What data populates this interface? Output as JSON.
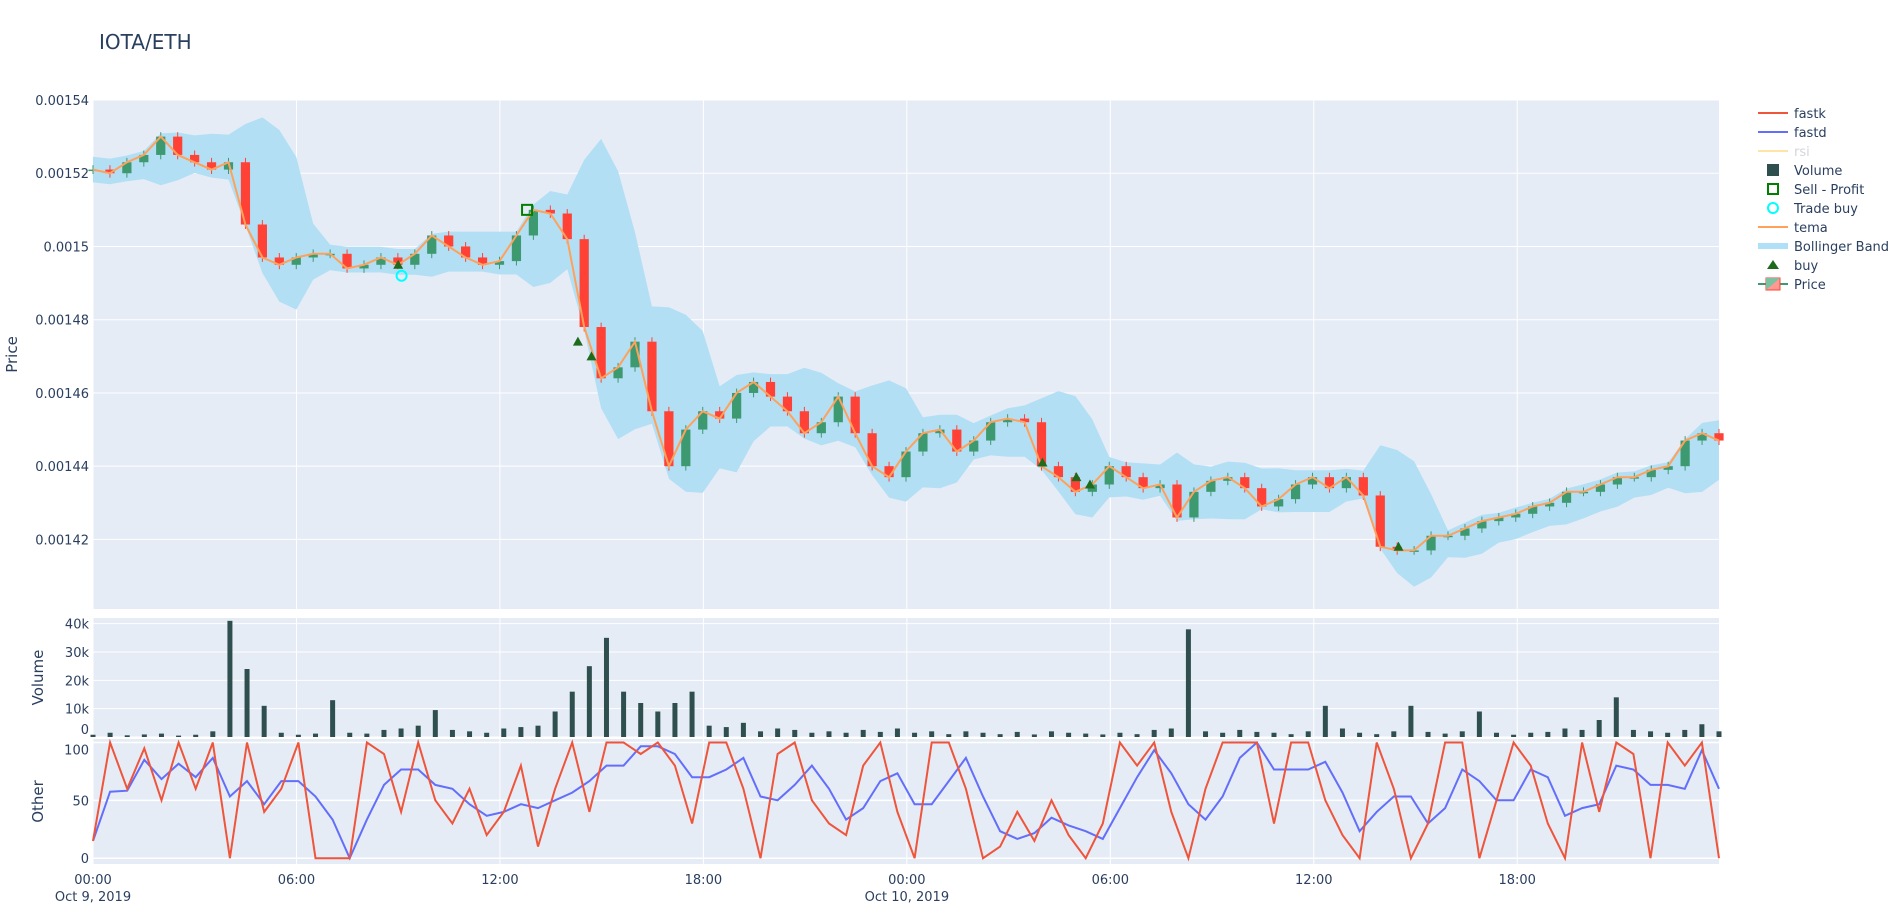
{
  "chart_data": {
    "type": "candlestick",
    "title": "IOTA/ETH",
    "x_ticks": [
      {
        "h": 0,
        "label": "00:00",
        "date": "Oct 9, 2019"
      },
      {
        "h": 6,
        "label": "06:00"
      },
      {
        "h": 12,
        "label": "12:00"
      },
      {
        "h": 18,
        "label": "18:00"
      },
      {
        "h": 24,
        "label": "00:00",
        "date": "Oct 10, 2019"
      },
      {
        "h": 30,
        "label": "06:00"
      },
      {
        "h": 36,
        "label": "12:00"
      },
      {
        "h": 42,
        "label": "18:00"
      }
    ],
    "x_range_hours": [
      0,
      47.95
    ],
    "grid": true,
    "legend_placement": "right",
    "panels": {
      "price": {
        "ylabel": "Price",
        "ylim": [
          0.001401,
          0.00154
        ],
        "ticks": [
          "0.00142",
          "0.00144",
          "0.00146",
          "0.00148",
          "0.0015",
          "0.00152",
          "0.00154"
        ],
        "close_every_30min": [
          0.001521,
          0.00152,
          0.001523,
          0.001525,
          0.00153,
          0.001525,
          0.001523,
          0.001521,
          0.001523,
          0.001506,
          0.001497,
          0.001495,
          0.001497,
          0.001498,
          0.001498,
          0.001494,
          0.001495,
          0.001497,
          0.001495,
          0.001498,
          0.001503,
          0.0015,
          0.001497,
          0.001495,
          0.001496,
          0.001503,
          0.00151,
          0.001509,
          0.001502,
          0.001478,
          0.001464,
          0.001467,
          0.001474,
          0.001455,
          0.00144,
          0.00145,
          0.001455,
          0.001453,
          0.00146,
          0.001463,
          0.001459,
          0.001455,
          0.001449,
          0.001452,
          0.001459,
          0.001449,
          0.00144,
          0.001437,
          0.001444,
          0.001449,
          0.00145,
          0.001444,
          0.001447,
          0.001452,
          0.001453,
          0.001452,
          0.00144,
          0.001437,
          0.001433,
          0.001435,
          0.00144,
          0.001437,
          0.001434,
          0.001435,
          0.001426,
          0.001433,
          0.001436,
          0.001437,
          0.001434,
          0.001429,
          0.001431,
          0.001435,
          0.001437,
          0.001434,
          0.001437,
          0.001432,
          0.001418,
          0.001417,
          0.001417,
          0.001421,
          0.001421,
          0.001423,
          0.001425,
          0.001426,
          0.001427,
          0.001429,
          0.00143,
          0.001433,
          0.001433,
          0.001435,
          0.001437,
          0.001437,
          0.001439,
          0.00144,
          0.001447,
          0.001449,
          0.001447
        ],
        "buy": [
          {
            "h": 9.0,
            "price": 0.001495
          },
          {
            "h": 14.3,
            "price": 0.001474
          },
          {
            "h": 14.7,
            "price": 0.00147
          },
          {
            "h": 28.0,
            "price": 0.001441
          },
          {
            "h": 29.0,
            "price": 0.001437
          },
          {
            "h": 29.4,
            "price": 0.001435
          },
          {
            "h": 38.5,
            "price": 0.001418
          }
        ],
        "trade_buy": [
          {
            "h": 9.1,
            "price": 0.001492
          }
        ],
        "sell_profit": [
          {
            "h": 12.8,
            "price": 0.00151
          }
        ]
      },
      "volume": {
        "ylabel": "Volume",
        "ylim": [
          0,
          42000
        ],
        "ticks": [
          {
            "v": 0,
            "label": "0"
          },
          {
            "v": 10000,
            "label": "10k"
          },
          {
            "v": 20000,
            "label": "20k"
          },
          {
            "v": 30000,
            "label": "30k"
          },
          {
            "v": 40000,
            "label": "40k"
          }
        ],
        "values_every_30min": [
          800,
          1500,
          600,
          900,
          1200,
          500,
          800,
          2000,
          41000,
          24000,
          11000,
          1500,
          800,
          1200,
          13000,
          1500,
          1200,
          2500,
          3000,
          4000,
          9500,
          2500,
          2000,
          1500,
          3000,
          3500,
          4000,
          9000,
          16000,
          25000,
          35000,
          16000,
          12000,
          9000,
          12000,
          16000,
          4000,
          3500,
          5000,
          2000,
          3000,
          2500,
          1500,
          2000,
          1500,
          2500,
          1800,
          3000,
          1500,
          2000,
          1000,
          2000,
          1500,
          1000,
          1800,
          900,
          2000,
          1500,
          1200,
          900,
          1500,
          1000,
          2500,
          3000,
          38000,
          2000,
          1500,
          2500,
          1800,
          1500,
          1000,
          2000,
          11000,
          3000,
          1500,
          1000,
          2000,
          11000,
          1800,
          1200,
          2000,
          9000,
          1500,
          800,
          1500,
          1800,
          3000,
          2500,
          6000,
          14000,
          2500,
          2000,
          1500,
          2500,
          4500,
          2000
        ]
      },
      "other": {
        "ylabel": "Other",
        "ylim": [
          -5,
          103
        ],
        "ticks": [
          {
            "v": 0,
            "label": "0"
          },
          {
            "v": 50,
            "label": "50"
          },
          {
            "v": 100,
            "label": "100"
          }
        ],
        "fastk": [
          15,
          100,
          60,
          95,
          50,
          100,
          60,
          100,
          0,
          100,
          40,
          60,
          100,
          0,
          0,
          0,
          100,
          90,
          40,
          100,
          50,
          30,
          60,
          20,
          40,
          80,
          10,
          60,
          100,
          40,
          100,
          100,
          90,
          100,
          80,
          30,
          100,
          100,
          60,
          0,
          90,
          100,
          50,
          30,
          20,
          80,
          100,
          40,
          0,
          100,
          100,
          60,
          0,
          10,
          40,
          15,
          50,
          20,
          0,
          30,
          100,
          80,
          100,
          40,
          0,
          60,
          100,
          100,
          100,
          30,
          100,
          100,
          50,
          20,
          0,
          100,
          60,
          0,
          30,
          100,
          100,
          0,
          50,
          100,
          80,
          30,
          0,
          100,
          40,
          100,
          90,
          0,
          100,
          80,
          100,
          0
        ]
      }
    },
    "legend": [
      {
        "name": "fastk",
        "kind": "line",
        "color": "#EF553B"
      },
      {
        "name": "fastd",
        "kind": "line",
        "color": "#636EFA"
      },
      {
        "name": "rsi",
        "kind": "line",
        "color": "#FECB52",
        "hidden": true
      },
      {
        "name": "Volume",
        "kind": "square",
        "color": "#2F4F4F"
      },
      {
        "name": "Sell - Profit",
        "kind": "open-square",
        "color": "#008000"
      },
      {
        "name": "Trade buy",
        "kind": "open-circle",
        "color": "#00FFFF"
      },
      {
        "name": "tema",
        "kind": "line",
        "color": "#FFA15A"
      },
      {
        "name": "Bollinger Band",
        "kind": "band",
        "color": "#B0E0F8"
      },
      {
        "name": "buy",
        "kind": "triangle",
        "color": "#1E6B1E"
      },
      {
        "name": "Price",
        "kind": "candle",
        "color": "#3D9970"
      }
    ],
    "colors": {
      "increasing": "#3D9970",
      "decreasing": "#FF4136",
      "plot_bg": "#E5ECF6",
      "band": "#B3DFF5"
    }
  }
}
